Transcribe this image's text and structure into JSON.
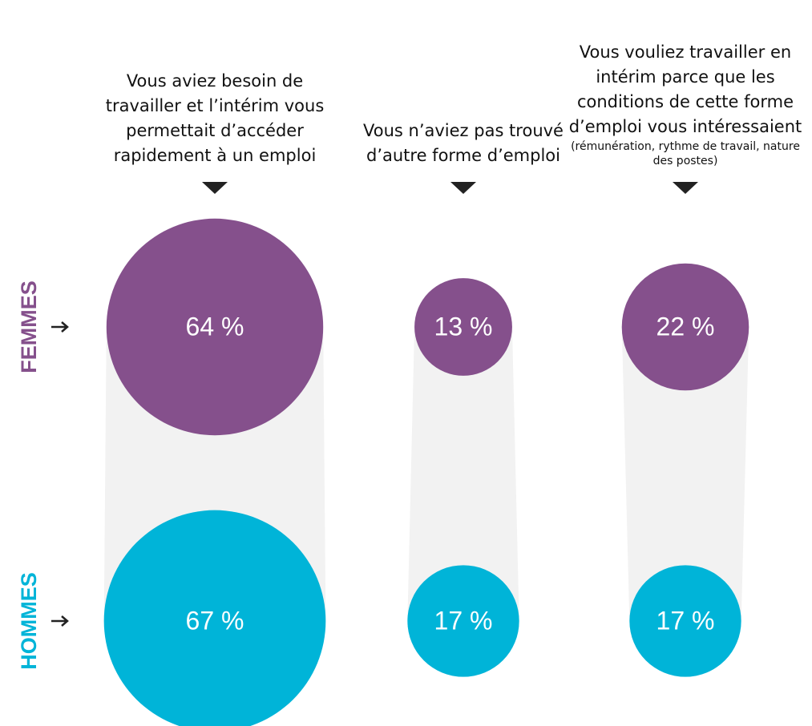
{
  "chart_data": {
    "type": "bubble",
    "categories": [
      "Vous aviez besoin de travailler et l’intérim vous permettait d’accéder rapidement à un emploi",
      "Vous n’aviez pas trouvé d’autre forme d’emploi",
      "Vous vouliez travailler en intérim parce que les conditions de cette forme d’emploi vous intéressaient"
    ],
    "category_notes": [
      null,
      null,
      "(rémunération, rythme de travail, nature des postes)"
    ],
    "series": [
      {
        "name": "FEMMES",
        "color": "#85508c",
        "values": [
          64,
          13,
          22
        ],
        "value_labels": [
          "64 %",
          "13 %",
          "22 %"
        ]
      },
      {
        "name": "HOMMES",
        "color": "#00b4d8",
        "values": [
          67,
          17,
          17
        ],
        "value_labels": [
          "67 %",
          "17 %",
          "17 %"
        ]
      }
    ]
  }
}
